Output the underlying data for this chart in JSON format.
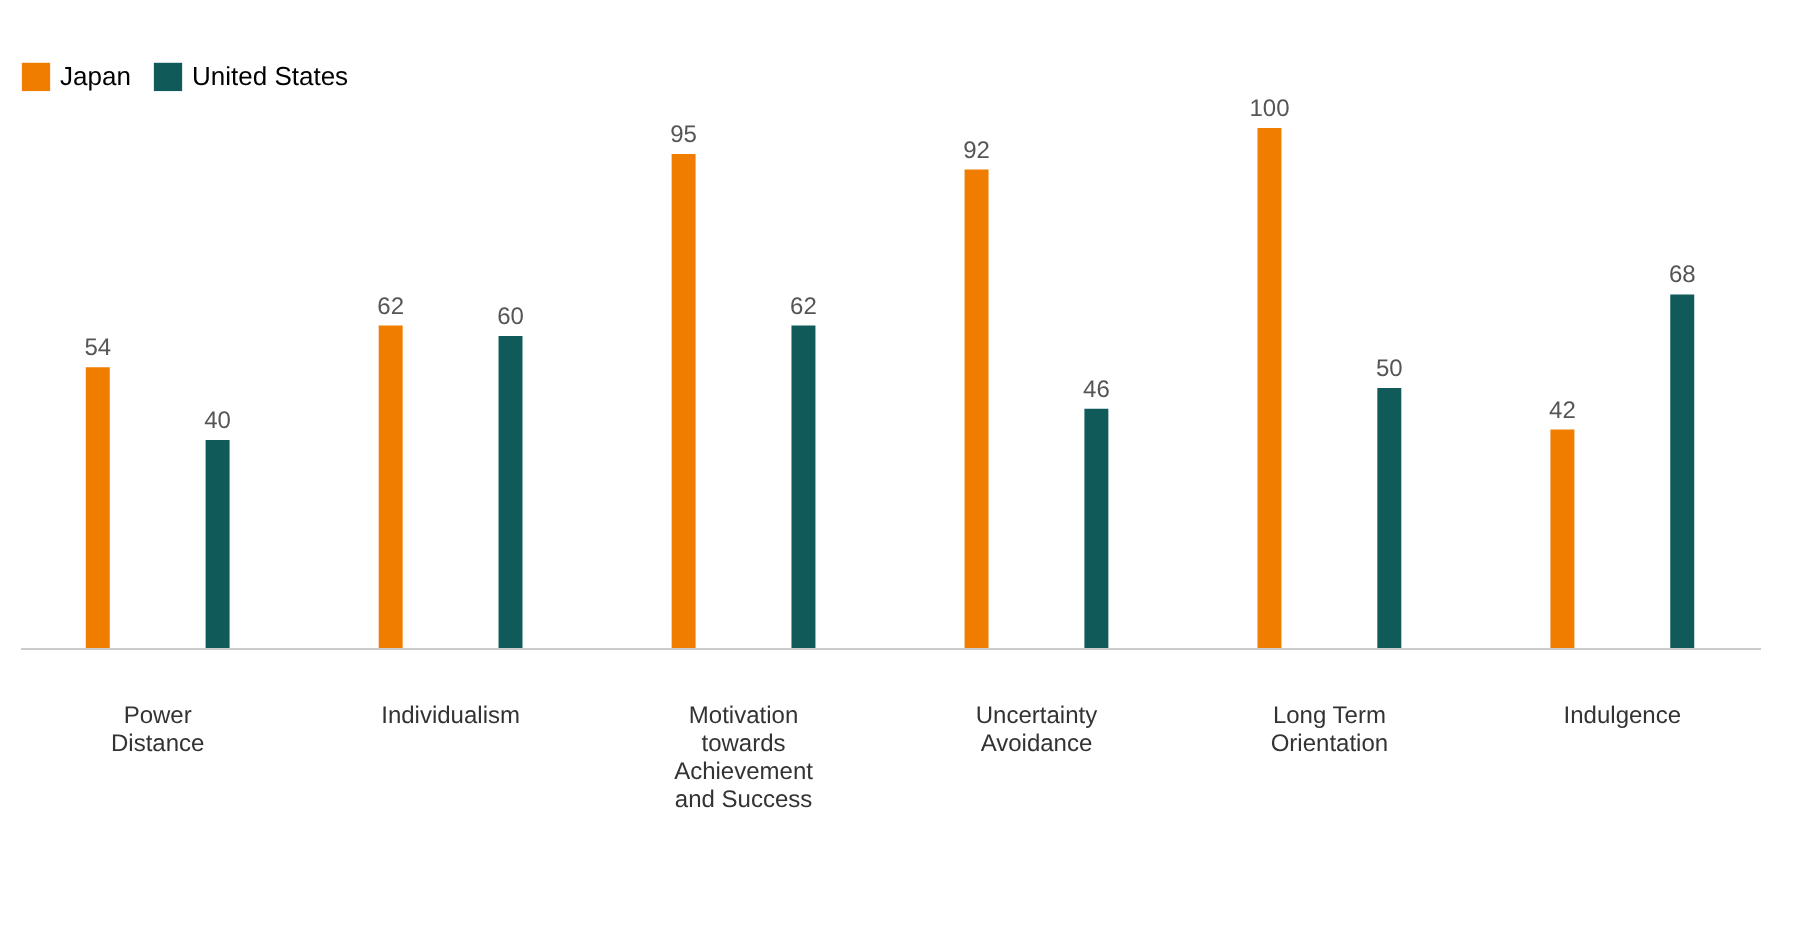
{
  "chart_data": {
    "type": "bar",
    "categories": [
      "Power Distance",
      "Individualism",
      "Motivation towards Achievement and Success",
      "Uncertainty Avoidance",
      "Long Term Orientation",
      "Indulgence"
    ],
    "series": [
      {
        "name": "Japan",
        "color": "#f07d00",
        "values": [
          54,
          62,
          95,
          92,
          100,
          42
        ]
      },
      {
        "name": "United States",
        "color": "#105a5a",
        "values": [
          40,
          60,
          62,
          46,
          50,
          68
        ]
      }
    ],
    "data_labels": true,
    "legend": "top",
    "grid": false
  }
}
